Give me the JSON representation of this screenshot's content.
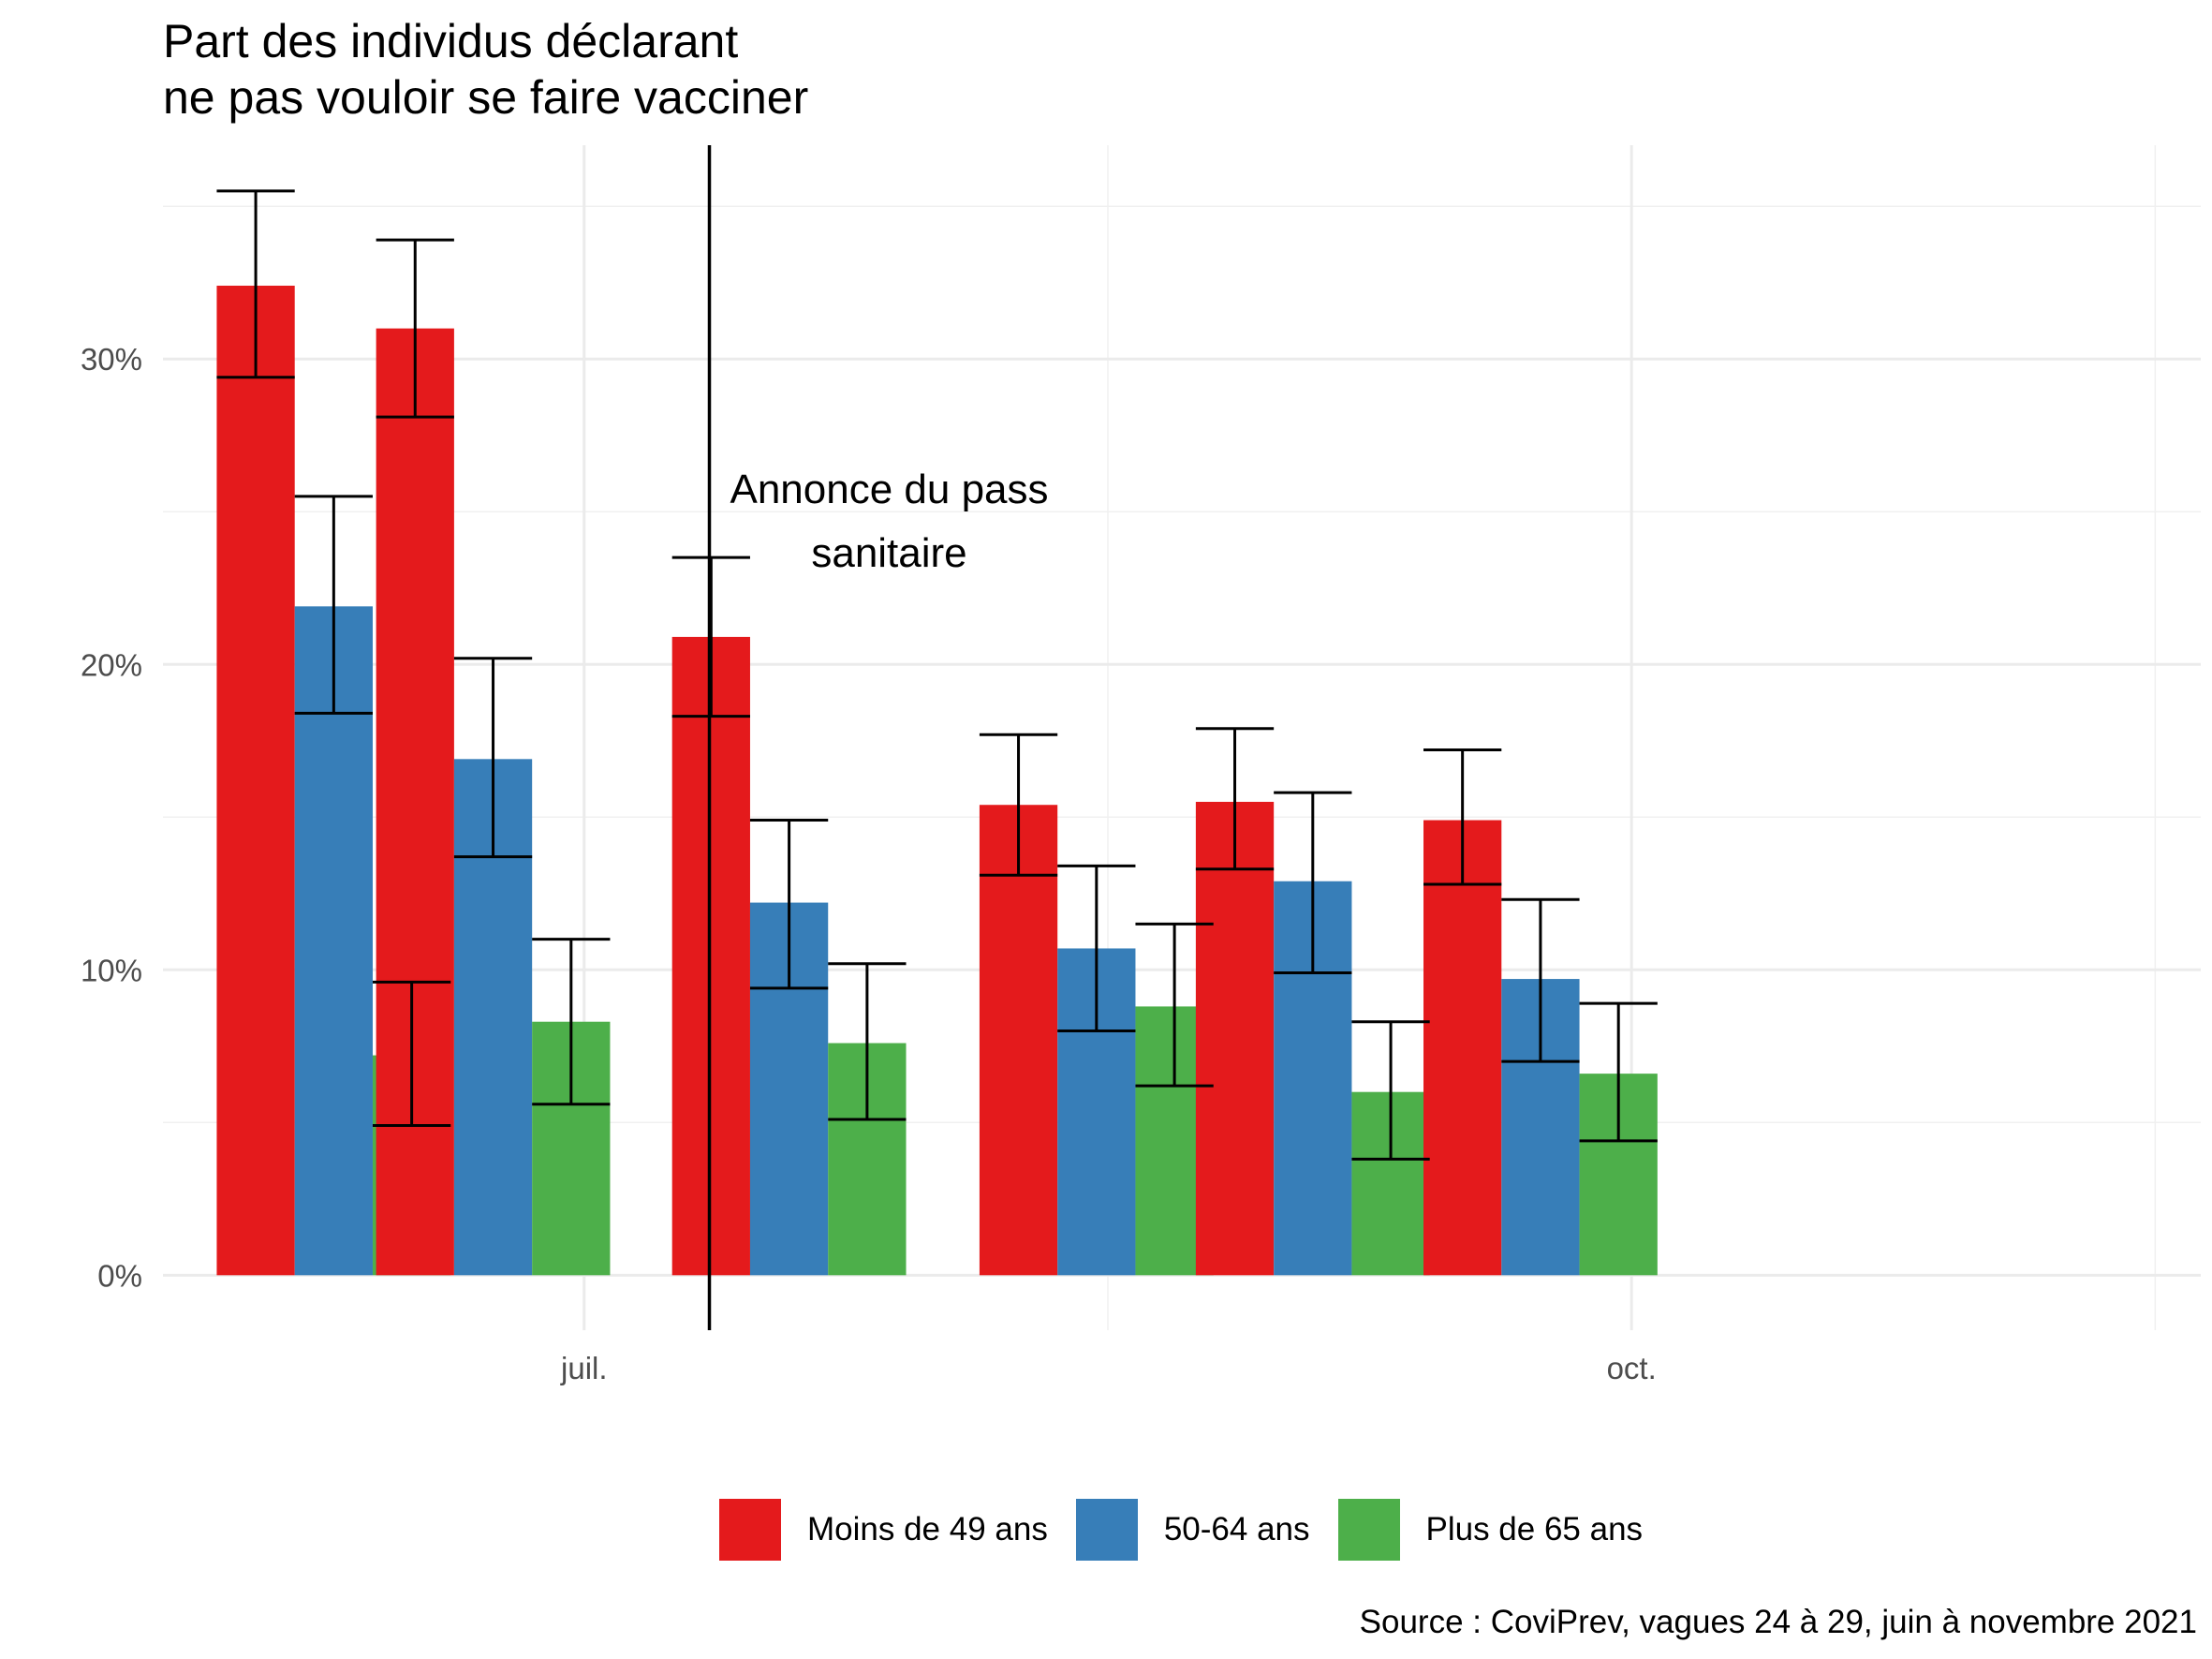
{
  "chart_data": {
    "type": "bar",
    "title_lines": [
      "Part des individus déclarant",
      "ne pas vouloir se faire vacciner"
    ],
    "xlabel": "",
    "ylabel": "",
    "ylim": [
      -0.018,
      0.37
    ],
    "y_ticks": [
      {
        "value": 0,
        "label": "0%"
      },
      {
        "value": 0.1,
        "label": "10%"
      },
      {
        "value": 0.2,
        "label": "20%"
      },
      {
        "value": 0.3,
        "label": "30%"
      }
    ],
    "x_tick_labels": [
      {
        "date": "2021-07-01",
        "label": "juil."
      },
      {
        "date": "2021-10-01",
        "label": "oct."
      }
    ],
    "x_range": [
      "2021-05-25",
      "2021-11-20"
    ],
    "groups": [
      "2021-06-09",
      "2021-06-23",
      "2021-07-19",
      "2021-08-15",
      "2021-09-03",
      "2021-09-23"
    ],
    "series": [
      {
        "name": "Moins de 49 ans",
        "color": "#E41A1C",
        "values": [
          0.324,
          0.31,
          0.209,
          0.154,
          0.155,
          0.149
        ],
        "ci_low": [
          0.294,
          0.281,
          0.183,
          0.131,
          0.133,
          0.128
        ],
        "ci_high": [
          0.355,
          0.339,
          0.235,
          0.177,
          0.179,
          0.172
        ]
      },
      {
        "name": "50-64 ans",
        "color": "#377EB8",
        "values": [
          0.219,
          0.169,
          0.122,
          0.107,
          0.129,
          0.097
        ],
        "ci_low": [
          0.184,
          0.137,
          0.094,
          0.08,
          0.099,
          0.07
        ],
        "ci_high": [
          0.255,
          0.202,
          0.149,
          0.134,
          0.158,
          0.123
        ]
      },
      {
        "name": "Plus de 65 ans",
        "color": "#4DAF4A",
        "values": [
          0.072,
          0.083,
          0.076,
          0.088,
          0.06,
          0.066
        ],
        "ci_low": [
          0.049,
          0.056,
          0.051,
          0.062,
          0.038,
          0.044
        ],
        "ci_high": [
          0.096,
          0.11,
          0.102,
          0.115,
          0.083,
          0.089
        ]
      }
    ],
    "reference_line": {
      "date": "2021-07-12"
    },
    "annotation": {
      "lines": [
        "Annonce du pass",
        "sanitaire"
      ]
    },
    "legend_position": "bottom",
    "grid": true,
    "source": "Source : CoviPrev, vagues 24 à 29, juin à novembre 2021"
  }
}
